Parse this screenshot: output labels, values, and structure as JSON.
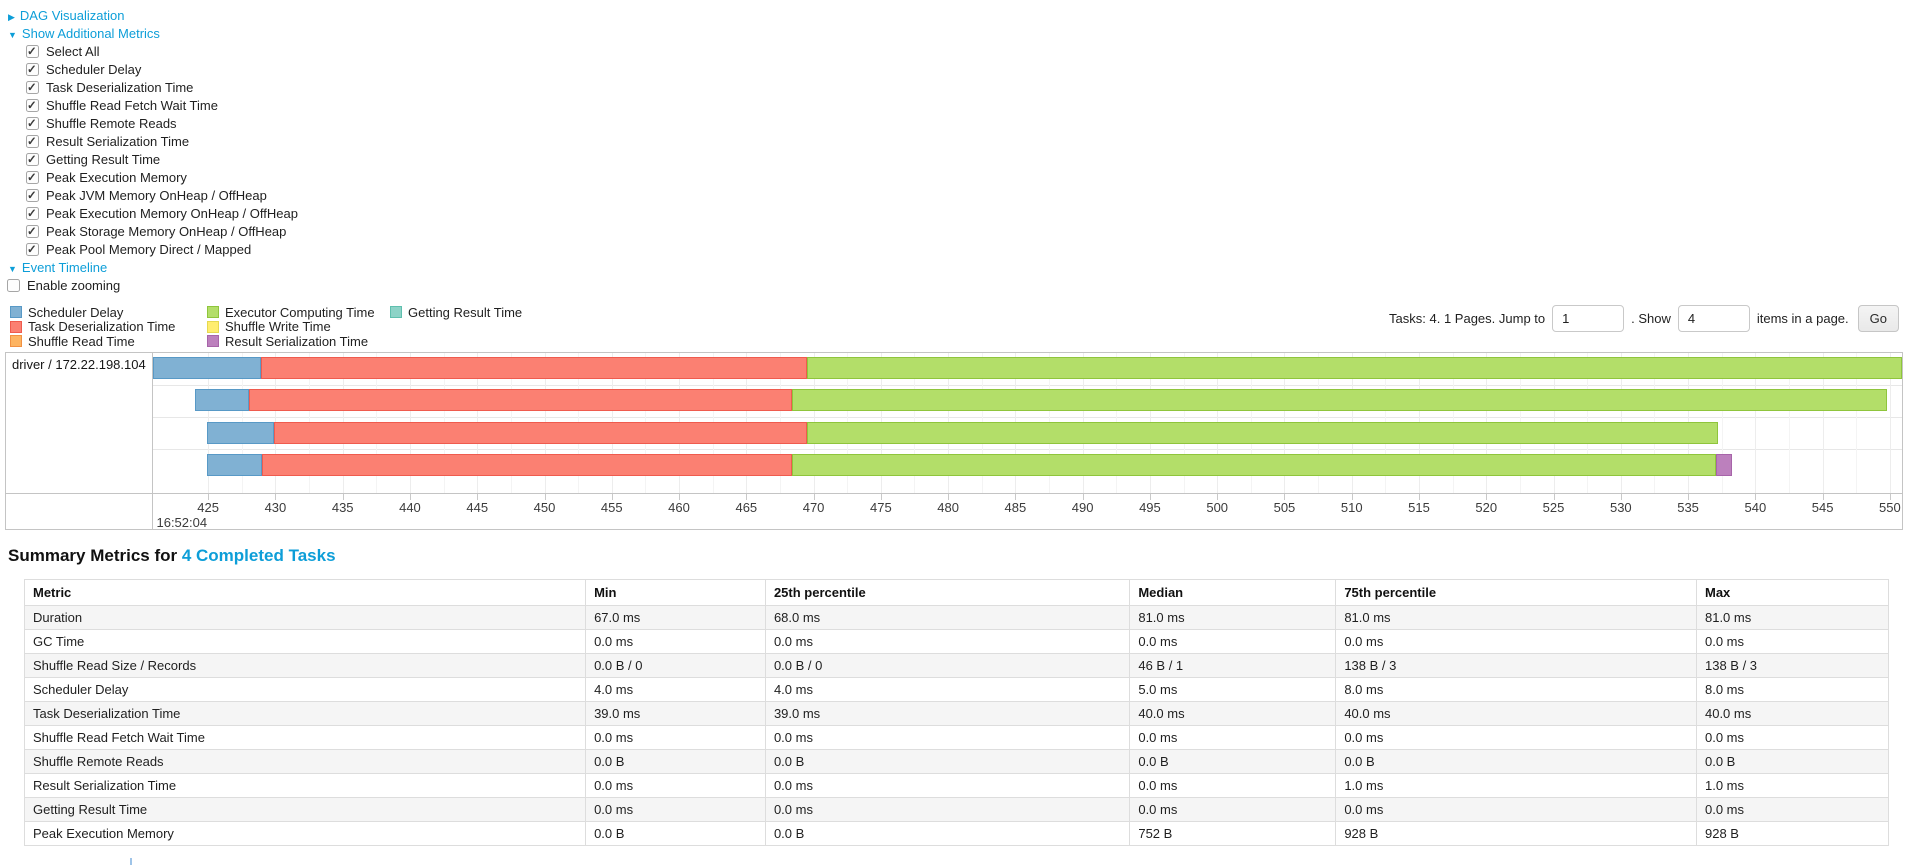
{
  "link_color": "#0d9ed8",
  "sections": {
    "dag": {
      "arrow": "▶",
      "label": "DAG Visualization"
    },
    "show_metrics": {
      "arrow": "▼",
      "label": "Show Additional Metrics"
    },
    "event_timeline": {
      "arrow": "▼",
      "label": "Event Timeline"
    },
    "enable_zooming": {
      "label": "Enable zooming",
      "checked": false
    }
  },
  "metrics_checkboxes": [
    {
      "label": "Select All",
      "checked": true
    },
    {
      "label": "Scheduler Delay",
      "checked": true
    },
    {
      "label": "Task Deserialization Time",
      "checked": true
    },
    {
      "label": "Shuffle Read Fetch Wait Time",
      "checked": true
    },
    {
      "label": "Shuffle Remote Reads",
      "checked": true
    },
    {
      "label": "Result Serialization Time",
      "checked": true
    },
    {
      "label": "Getting Result Time",
      "checked": true
    },
    {
      "label": "Peak Execution Memory",
      "checked": true
    },
    {
      "label": "Peak JVM Memory OnHeap / OffHeap",
      "checked": true
    },
    {
      "label": "Peak Execution Memory OnHeap / OffHeap",
      "checked": true
    },
    {
      "label": "Peak Storage Memory OnHeap / OffHeap",
      "checked": true
    },
    {
      "label": "Peak Pool Memory Direct / Mapped",
      "checked": true
    }
  ],
  "legend": {
    "items": [
      {
        "key": "scheduler_delay",
        "label": "Scheduler Delay",
        "fill": "#80B1D3",
        "border": "#5899C6"
      },
      {
        "key": "task_deserialization",
        "label": "Task Deserialization Time",
        "fill": "#FB8072",
        "border": "#EF5B4E"
      },
      {
        "key": "shuffle_read",
        "label": "Shuffle Read Time",
        "fill": "#FDB462",
        "border": "#F19143"
      },
      {
        "key": "executor_computing",
        "label": "Executor Computing Time",
        "fill": "#B3DE69",
        "border": "#8FC53C"
      },
      {
        "key": "shuffle_write",
        "label": "Shuffle Write Time",
        "fill": "#FFED6F",
        "border": "#E6D94F"
      },
      {
        "key": "result_serialization",
        "label": "Result Serialization Time",
        "fill": "#BC80BD",
        "border": "#A764A9"
      },
      {
        "key": "getting_result",
        "label": "Getting Result Time",
        "fill": "#8DD3C7",
        "border": "#5FBFAE"
      }
    ]
  },
  "pagination": {
    "tasks_text": "Tasks: 4. 1 Pages. Jump to",
    "jump_value": "1",
    "show_text": ". Show",
    "show_value": "4",
    "items_text": "items in a page.",
    "go_label": "Go"
  },
  "chart_data": {
    "type": "timeline",
    "group_label": "driver / 172.22.198.104",
    "time_label": "16:52:04",
    "axis_unit": "milliseconds within 16:52:04",
    "domain": [
      420.9,
      550.9
    ],
    "ticks": [
      425,
      430,
      435,
      440,
      445,
      450,
      455,
      460,
      465,
      470,
      475,
      480,
      485,
      490,
      495,
      500,
      505,
      510,
      515,
      520,
      525,
      530,
      535,
      540,
      545,
      550
    ],
    "row_tops": [
      4,
      36,
      69,
      101
    ],
    "lane_lines": [
      32,
      64,
      96
    ],
    "rows": [
      {
        "segments": [
          {
            "metric": "scheduler_delay",
            "start": 420.9,
            "end": 428.9
          },
          {
            "metric": "task_deserialization",
            "start": 428.9,
            "end": 469.5
          },
          {
            "metric": "executor_computing",
            "start": 469.5,
            "end": 550.9
          }
        ]
      },
      {
        "segments": [
          {
            "metric": "scheduler_delay",
            "start": 424.0,
            "end": 428.0
          },
          {
            "metric": "task_deserialization",
            "start": 428.0,
            "end": 468.4
          },
          {
            "metric": "executor_computing",
            "start": 468.4,
            "end": 549.8
          }
        ]
      },
      {
        "segments": [
          {
            "metric": "scheduler_delay",
            "start": 424.9,
            "end": 429.9
          },
          {
            "metric": "task_deserialization",
            "start": 429.9,
            "end": 469.5
          },
          {
            "metric": "executor_computing",
            "start": 469.5,
            "end": 537.2
          }
        ]
      },
      {
        "segments": [
          {
            "metric": "scheduler_delay",
            "start": 424.9,
            "end": 429.0
          },
          {
            "metric": "task_deserialization",
            "start": 429.0,
            "end": 468.4
          },
          {
            "metric": "executor_computing",
            "start": 468.4,
            "end": 537.1
          },
          {
            "metric": "result_serialization",
            "start": 537.1,
            "end": 538.3
          }
        ]
      }
    ]
  },
  "summary": {
    "heading_prefix": "Summary Metrics for ",
    "heading_link": "4 Completed Tasks",
    "columns": [
      "Metric",
      "Min",
      "25th percentile",
      "Median",
      "75th percentile",
      "Max"
    ],
    "col_widths_pct": [
      30.1,
      9.65,
      19.55,
      11.05,
      19.35,
      10.3
    ],
    "rows": [
      [
        "Duration",
        "67.0 ms",
        "68.0 ms",
        "81.0 ms",
        "81.0 ms",
        "81.0 ms"
      ],
      [
        "GC Time",
        "0.0 ms",
        "0.0 ms",
        "0.0 ms",
        "0.0 ms",
        "0.0 ms"
      ],
      [
        "Shuffle Read Size / Records",
        "0.0 B / 0",
        "0.0 B / 0",
        "46 B / 1",
        "138 B / 3",
        "138 B / 3"
      ],
      [
        "Scheduler Delay",
        "4.0 ms",
        "4.0 ms",
        "5.0 ms",
        "8.0 ms",
        "8.0 ms"
      ],
      [
        "Task Deserialization Time",
        "39.0 ms",
        "39.0 ms",
        "40.0 ms",
        "40.0 ms",
        "40.0 ms"
      ],
      [
        "Shuffle Read Fetch Wait Time",
        "0.0 ms",
        "0.0 ms",
        "0.0 ms",
        "0.0 ms",
        "0.0 ms"
      ],
      [
        "Shuffle Remote Reads",
        "0.0 B",
        "0.0 B",
        "0.0 B",
        "0.0 B",
        "0.0 B"
      ],
      [
        "Result Serialization Time",
        "0.0 ms",
        "0.0 ms",
        "0.0 ms",
        "1.0 ms",
        "1.0 ms"
      ],
      [
        "Getting Result Time",
        "0.0 ms",
        "0.0 ms",
        "0.0 ms",
        "0.0 ms",
        "0.0 ms"
      ],
      [
        "Peak Execution Memory",
        "0.0 B",
        "0.0 B",
        "752 B",
        "928 B",
        "928 B"
      ]
    ]
  }
}
